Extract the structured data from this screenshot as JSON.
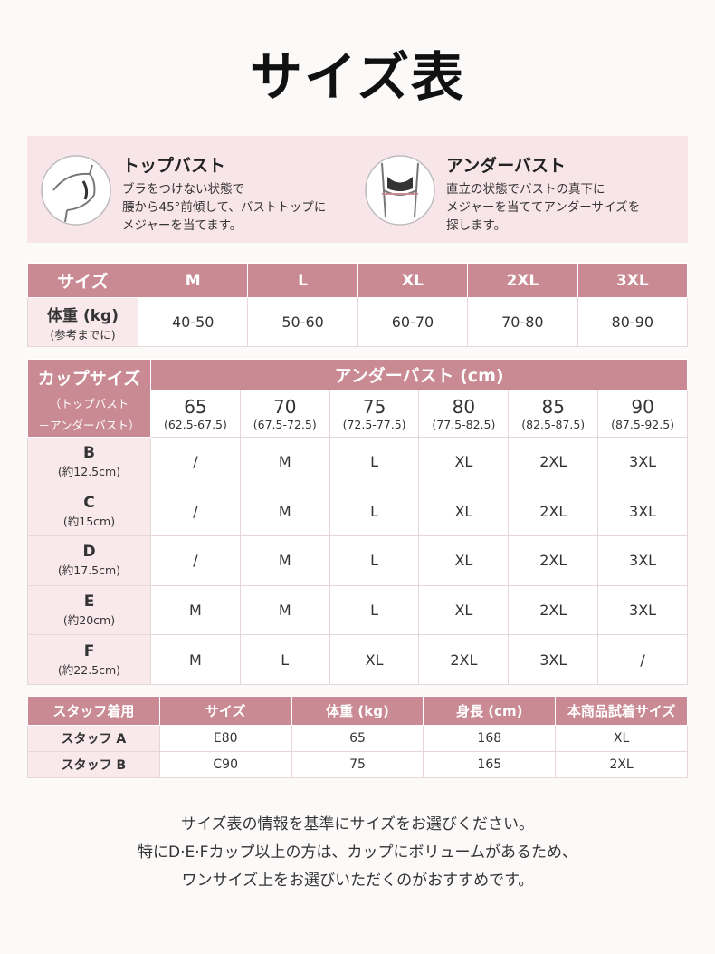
{
  "title": "サイズ表",
  "measure": [
    {
      "title": "トップバスト",
      "lines": [
        "ブラをつけない状態で",
        "腰から45°前傾して、バストトップに",
        "メジャーを当てます。"
      ]
    },
    {
      "title": "アンダーバスト",
      "lines": [
        "直立の状態でバストの真下に",
        "メジャーを当ててアンダーサイズを",
        "探します。"
      ]
    }
  ],
  "size_table": {
    "header": [
      "サイズ",
      "M",
      "L",
      "XL",
      "2XL",
      "3XL"
    ],
    "weight_label": "体重 (kg)",
    "weight_note": "(参考までに)",
    "weights": [
      "40-50",
      "50-60",
      "60-70",
      "70-80",
      "80-90"
    ]
  },
  "cup_table": {
    "corner_title": "カップサイズ",
    "corner_note": [
      "（トップバスト",
      "－アンダーバスト）"
    ],
    "under_title": "アンダーバスト (cm)",
    "unders": [
      {
        "size": "65",
        "range": "(62.5-67.5)"
      },
      {
        "size": "70",
        "range": "(67.5-72.5)"
      },
      {
        "size": "75",
        "range": "(72.5-77.5)"
      },
      {
        "size": "80",
        "range": "(77.5-82.5)"
      },
      {
        "size": "85",
        "range": "(82.5-87.5)"
      },
      {
        "size": "90",
        "range": "(87.5-92.5)"
      }
    ],
    "rows": [
      {
        "cup": "B",
        "diff": "(約12.5cm)",
        "cells": [
          "/",
          "M",
          "L",
          "XL",
          "2XL",
          "3XL"
        ]
      },
      {
        "cup": "C",
        "diff": "(約15cm)",
        "cells": [
          "/",
          "M",
          "L",
          "XL",
          "2XL",
          "3XL"
        ]
      },
      {
        "cup": "D",
        "diff": "(約17.5cm)",
        "cells": [
          "/",
          "M",
          "L",
          "XL",
          "2XL",
          "3XL"
        ]
      },
      {
        "cup": "E",
        "diff": "(約20cm)",
        "cells": [
          "M",
          "M",
          "L",
          "XL",
          "2XL",
          "3XL"
        ]
      },
      {
        "cup": "F",
        "diff": "(約22.5cm)",
        "cells": [
          "M",
          "L",
          "XL",
          "2XL",
          "3XL",
          "/"
        ]
      }
    ]
  },
  "staff_table": {
    "header": [
      "スタッフ着用",
      "サイズ",
      "体重 (kg)",
      "身長 (cm)",
      "本商品試着サイズ"
    ],
    "rows": [
      [
        "スタッフ A",
        "E80",
        "65",
        "168",
        "XL"
      ],
      [
        "スタッフ B",
        "C90",
        "75",
        "165",
        "2XL"
      ]
    ]
  },
  "notes": [
    "サイズ表の情報を基準にサイズをお選びください。",
    "特にD·E·Fカップ以上の方は、カップにボリュームがあるため、",
    "ワンサイズ上をお選びいただくのがおすすめです。"
  ]
}
